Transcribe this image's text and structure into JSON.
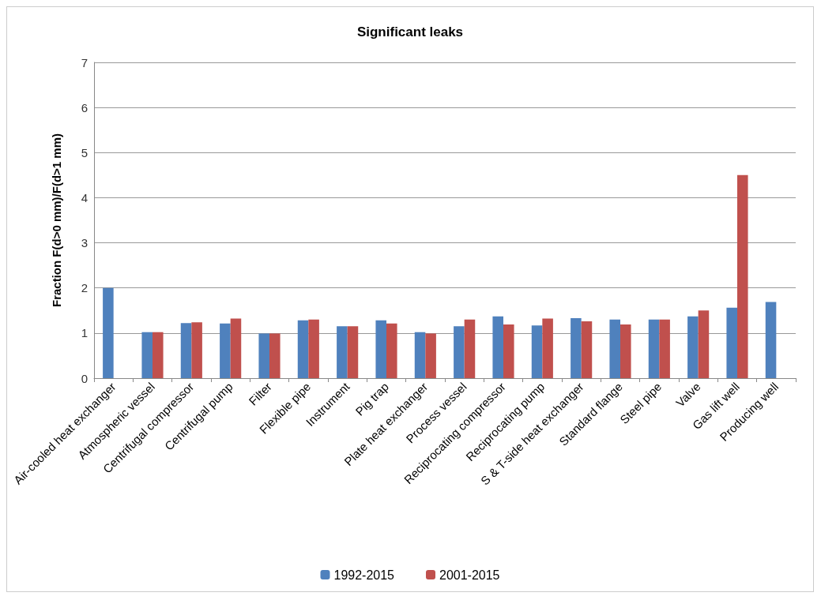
{
  "chart_data": {
    "type": "bar",
    "title": "Significant leaks",
    "ylabel": "Fraction F(d>0 mm)/F(d>1 mm)",
    "categories": [
      "Air-cooled heat exchanger",
      "Atmospheric vessel",
      "Centrifugal compressor",
      "Centrifugal pump",
      "Filter",
      "Flexible pipe",
      "Instrument",
      "Pig trap",
      "Plate heat exchanger",
      "Process vessel",
      "Reciprocating compressor",
      "Reciprocating pump",
      "S & T-side heat exchanger",
      "Standard flange",
      "Steel pipe",
      "Valve",
      "Gas lift well",
      "Producing well"
    ],
    "series": [
      {
        "name": "1992-2015",
        "color": "#4f81bd",
        "values": [
          2.0,
          1.02,
          1.22,
          1.21,
          0.99,
          1.28,
          1.15,
          1.28,
          1.02,
          1.15,
          1.37,
          1.17,
          1.33,
          1.3,
          1.3,
          1.37,
          1.56,
          1.69
        ]
      },
      {
        "name": "2001-2015",
        "color": "#c0504d",
        "values": [
          null,
          1.02,
          1.24,
          1.32,
          0.99,
          1.3,
          1.15,
          1.21,
          0.99,
          1.3,
          1.19,
          1.32,
          1.26,
          1.19,
          1.3,
          1.5,
          4.5,
          null
        ]
      }
    ],
    "ylim": [
      0,
      7
    ],
    "yticks": [
      0,
      1,
      2,
      3,
      4,
      5,
      6,
      7
    ],
    "grid": "y",
    "legend": "bottom"
  }
}
